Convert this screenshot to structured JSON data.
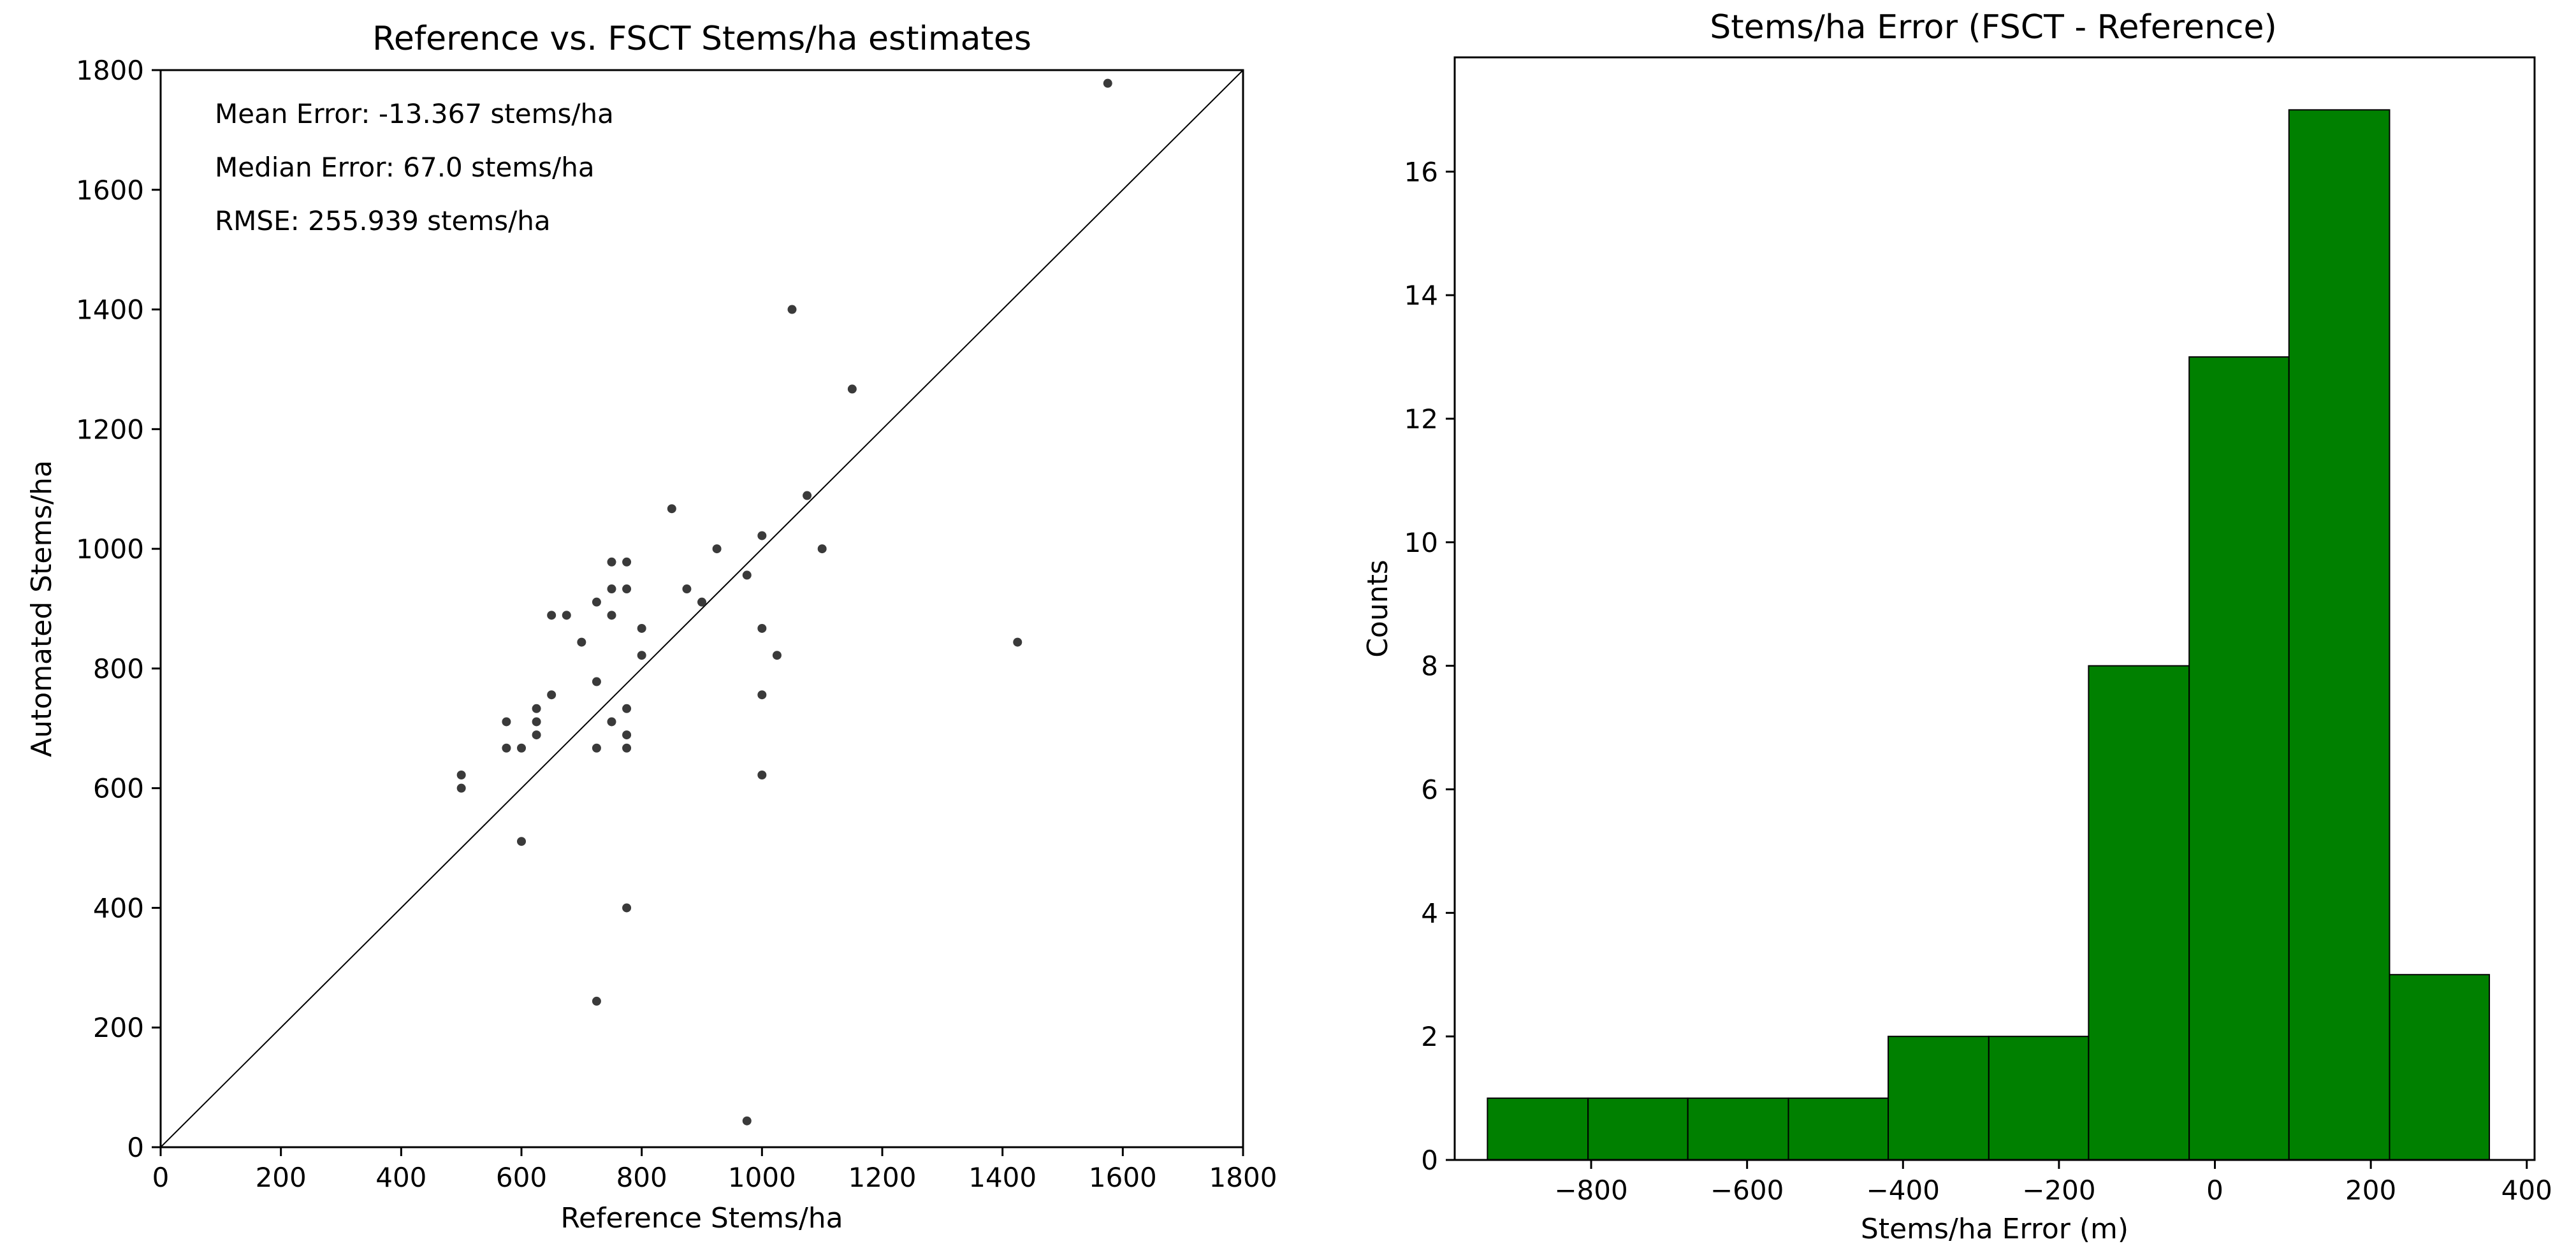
{
  "chart_data": [
    {
      "type": "scatter",
      "title": "Reference vs. FSCT Stems/ha estimates",
      "xlabel": "Reference Stems/ha",
      "ylabel": "Automated Stems/ha",
      "xlim": [
        0,
        1800
      ],
      "ylim": [
        0,
        1800
      ],
      "xticks": [
        "0",
        "200",
        "400",
        "600",
        "800",
        "1000",
        "1200",
        "1400",
        "1600",
        "1800"
      ],
      "yticks": [
        "0",
        "200",
        "400",
        "600",
        "800",
        "1000",
        "1200",
        "1400",
        "1600",
        "1800"
      ],
      "reference_line": "y = x",
      "annotations": [
        "Mean Error: -13.367 stems/ha",
        "Median Error: 67.0 stems/ha",
        "RMSE: 255.939 stems/ha"
      ],
      "points": [
        {
          "x": 500,
          "y": 622
        },
        {
          "x": 500,
          "y": 600
        },
        {
          "x": 575,
          "y": 711
        },
        {
          "x": 575,
          "y": 667
        },
        {
          "x": 600,
          "y": 667
        },
        {
          "x": 600,
          "y": 511
        },
        {
          "x": 625,
          "y": 733
        },
        {
          "x": 625,
          "y": 711
        },
        {
          "x": 625,
          "y": 689
        },
        {
          "x": 650,
          "y": 889
        },
        {
          "x": 650,
          "y": 756
        },
        {
          "x": 675,
          "y": 889
        },
        {
          "x": 700,
          "y": 844
        },
        {
          "x": 725,
          "y": 911
        },
        {
          "x": 725,
          "y": 778
        },
        {
          "x": 725,
          "y": 667
        },
        {
          "x": 725,
          "y": 244
        },
        {
          "x": 750,
          "y": 978
        },
        {
          "x": 750,
          "y": 933
        },
        {
          "x": 750,
          "y": 889
        },
        {
          "x": 750,
          "y": 711
        },
        {
          "x": 775,
          "y": 978
        },
        {
          "x": 775,
          "y": 933
        },
        {
          "x": 775,
          "y": 733
        },
        {
          "x": 775,
          "y": 689
        },
        {
          "x": 775,
          "y": 667
        },
        {
          "x": 775,
          "y": 400
        },
        {
          "x": 800,
          "y": 867
        },
        {
          "x": 800,
          "y": 822
        },
        {
          "x": 850,
          "y": 1067
        },
        {
          "x": 875,
          "y": 933
        },
        {
          "x": 900,
          "y": 911
        },
        {
          "x": 925,
          "y": 1000
        },
        {
          "x": 975,
          "y": 956
        },
        {
          "x": 975,
          "y": 44
        },
        {
          "x": 1000,
          "y": 1022
        },
        {
          "x": 1000,
          "y": 867
        },
        {
          "x": 1000,
          "y": 756
        },
        {
          "x": 1000,
          "y": 622
        },
        {
          "x": 1025,
          "y": 822
        },
        {
          "x": 1050,
          "y": 1400
        },
        {
          "x": 1075,
          "y": 1089
        },
        {
          "x": 1100,
          "y": 1000
        },
        {
          "x": 1150,
          "y": 1267
        },
        {
          "x": 1425,
          "y": 844
        },
        {
          "x": 1575,
          "y": 1778
        }
      ]
    },
    {
      "type": "bar",
      "subtype": "histogram",
      "title": "Stems/ha Error (FSCT - Reference)",
      "xlabel": "Stems/ha Error (m)",
      "ylabel": "Counts",
      "xlim": [
        -975,
        410
      ],
      "ylim": [
        0,
        17.85
      ],
      "xticks": [
        "-800",
        "-600",
        "-400",
        "-200",
        "0",
        "200",
        "400"
      ],
      "yticks": [
        "0",
        "2",
        "4",
        "6",
        "8",
        "10",
        "12",
        "14",
        "16"
      ],
      "bar_color": "#008000",
      "bins": [
        {
          "start": -933,
          "end": -804,
          "count": 1
        },
        {
          "start": -804,
          "end": -676,
          "count": 1
        },
        {
          "start": -676,
          "end": -547,
          "count": 1
        },
        {
          "start": -547,
          "end": -419,
          "count": 1
        },
        {
          "start": -419,
          "end": -290,
          "count": 2
        },
        {
          "start": -290,
          "end": -162,
          "count": 2
        },
        {
          "start": -162,
          "end": -33,
          "count": 8
        },
        {
          "start": -33,
          "end": 95,
          "count": 13
        },
        {
          "start": 95,
          "end": 224,
          "count": 17
        },
        {
          "start": 224,
          "end": 352,
          "count": 3
        }
      ]
    }
  ]
}
